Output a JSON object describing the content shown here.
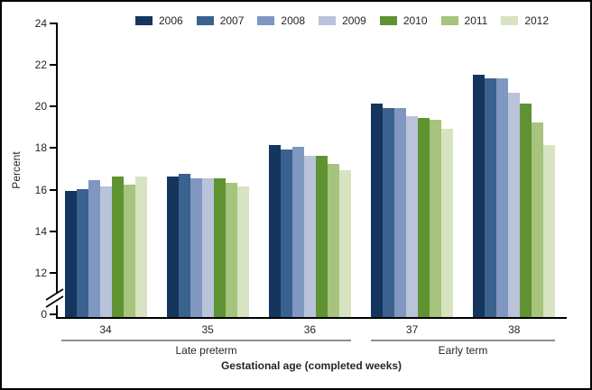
{
  "chart_data": {
    "type": "bar",
    "title": "",
    "ylabel": "Percent",
    "xlabel": "Gestational age (completed weeks)",
    "categories": [
      "34",
      "35",
      "36",
      "37",
      "38"
    ],
    "category_group_labels": [
      {
        "label": "Late preterm",
        "categories": [
          "34",
          "35",
          "36"
        ]
      },
      {
        "label": "Early term",
        "categories": [
          "37",
          "38"
        ]
      }
    ],
    "series": [
      {
        "name": "2006",
        "color": "#14355e",
        "values": [
          15.9,
          16.6,
          18.1,
          20.1,
          21.5
        ]
      },
      {
        "name": "2007",
        "color": "#3b618e",
        "values": [
          16.0,
          16.7,
          17.9,
          19.9,
          21.3
        ]
      },
      {
        "name": "2008",
        "color": "#8097c1",
        "values": [
          16.4,
          16.5,
          18.0,
          19.9,
          21.3
        ]
      },
      {
        "name": "2009",
        "color": "#b9c3da",
        "values": [
          16.1,
          16.5,
          17.6,
          19.5,
          20.6
        ]
      },
      {
        "name": "2010",
        "color": "#5f9331",
        "values": [
          16.6,
          16.5,
          17.6,
          19.4,
          20.1
        ]
      },
      {
        "name": "2011",
        "color": "#a6c47d",
        "values": [
          16.2,
          16.3,
          17.2,
          19.3,
          19.2
        ]
      },
      {
        "name": "2012",
        "color": "#d7e3c1",
        "values": [
          16.6,
          16.1,
          16.9,
          18.9,
          18.1
        ]
      }
    ],
    "y_axis": {
      "ticks_shown": [
        24,
        22,
        20,
        18,
        16,
        14,
        12,
        0
      ],
      "ylim_display": [
        12,
        24
      ],
      "axis_break_between": [
        0,
        12
      ]
    },
    "legend_position": "top",
    "grid": false
  }
}
